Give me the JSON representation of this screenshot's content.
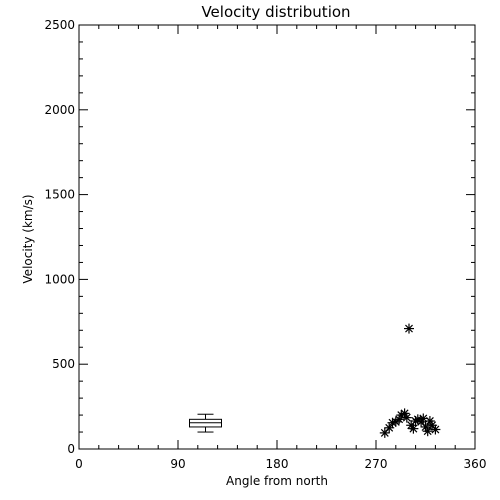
{
  "chart_data": {
    "type": "scatter",
    "title": "Velocity distribution",
    "xlabel": "Angle from north",
    "ylabel": "Velocity (km/s)",
    "xlim": [
      0,
      360
    ],
    "ylim": [
      0,
      2500
    ],
    "x_ticks": [
      0,
      90,
      180,
      270,
      360
    ],
    "y_ticks": [
      0,
      500,
      1000,
      1500,
      2000,
      2500
    ],
    "grid": false,
    "legend": "none",
    "box": {
      "x": 115,
      "whisker_low": 100,
      "q1": 130,
      "median": 155,
      "q3": 175,
      "whisker_high": 205
    },
    "series": [
      {
        "marker": "asterisk",
        "points": [
          {
            "x": 278,
            "y": 95
          },
          {
            "x": 282,
            "y": 125
          },
          {
            "x": 285,
            "y": 155
          },
          {
            "x": 288,
            "y": 160
          },
          {
            "x": 291,
            "y": 175
          },
          {
            "x": 293,
            "y": 200
          },
          {
            "x": 296,
            "y": 210
          },
          {
            "x": 298,
            "y": 185
          },
          {
            "x": 300,
            "y": 710
          },
          {
            "x": 302,
            "y": 140
          },
          {
            "x": 304,
            "y": 120
          },
          {
            "x": 306,
            "y": 165
          },
          {
            "x": 308,
            "y": 175
          },
          {
            "x": 311,
            "y": 160
          },
          {
            "x": 313,
            "y": 180
          },
          {
            "x": 315,
            "y": 130
          },
          {
            "x": 317,
            "y": 105
          },
          {
            "x": 319,
            "y": 165
          },
          {
            "x": 321,
            "y": 140
          },
          {
            "x": 324,
            "y": 115
          }
        ]
      }
    ]
  }
}
